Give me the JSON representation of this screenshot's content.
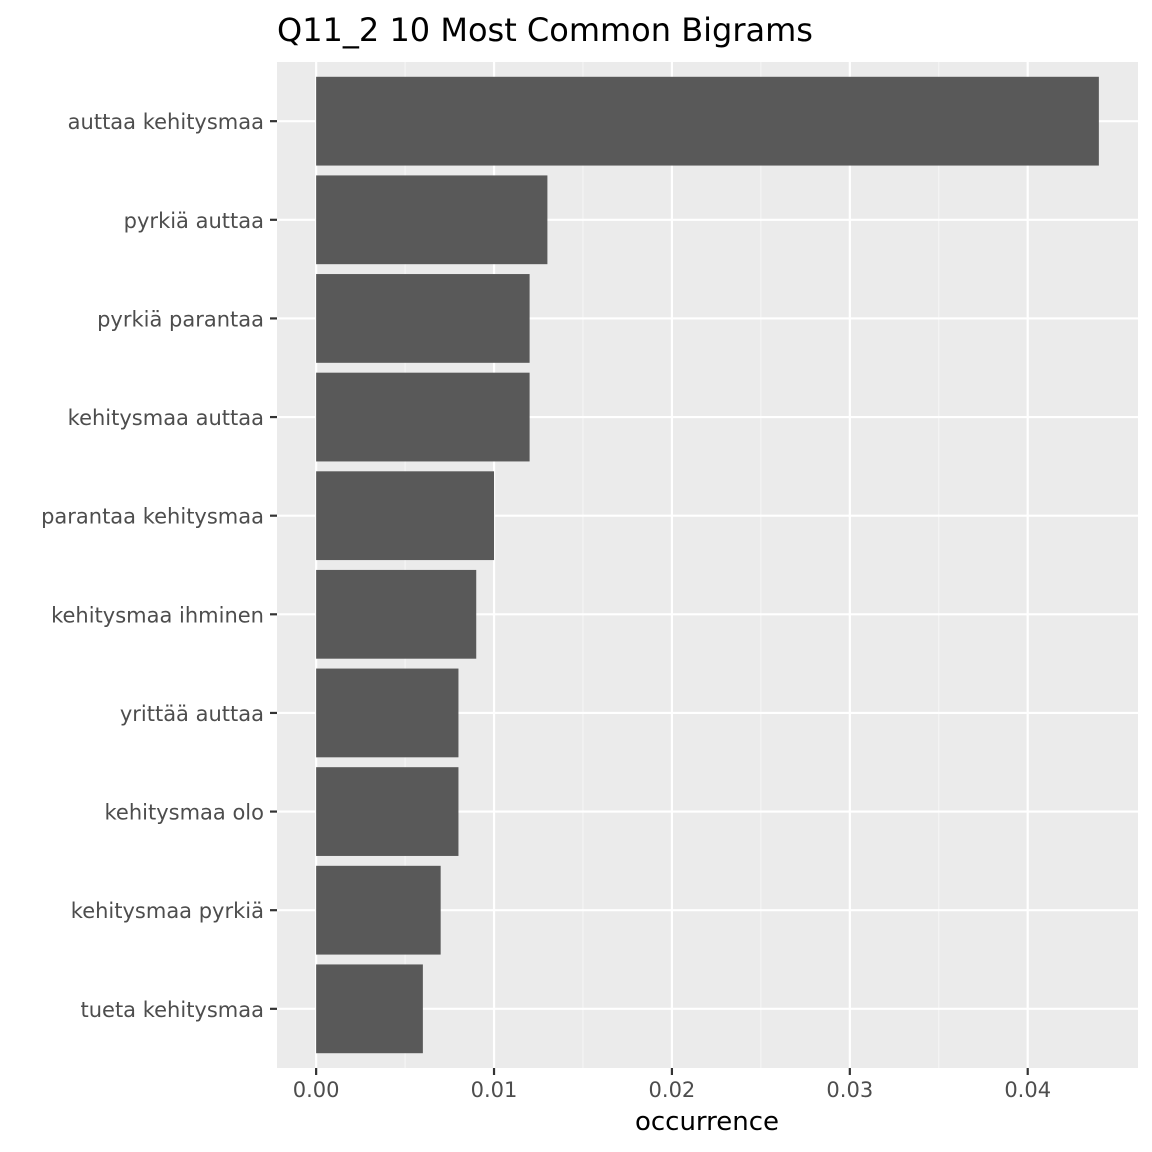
{
  "chart_data": {
    "type": "bar",
    "orientation": "horizontal",
    "title": "Q11_2 10 Most Common Bigrams",
    "xlabel": "occurrence",
    "ylabel": "",
    "categories": [
      "auttaa kehitysmaa",
      "pyrkiä auttaa",
      "pyrkiä parantaa",
      "kehitysmaa auttaa",
      "parantaa kehitysmaa",
      "kehitysmaa ihminen",
      "yrittää auttaa",
      "kehitysmaa olo",
      "kehitysmaa pyrkiä",
      "tueta kehitysmaa"
    ],
    "values": [
      0.044,
      0.013,
      0.012,
      0.012,
      0.01,
      0.009,
      0.008,
      0.008,
      0.007,
      0.006
    ],
    "xlim": [
      -0.0022,
      0.0462
    ],
    "x_ticks": [
      0.0,
      0.01,
      0.02,
      0.03,
      0.04
    ],
    "x_tick_labels": [
      "0.00",
      "0.01",
      "0.02",
      "0.03",
      "0.04"
    ],
    "grid": true,
    "legend": "none",
    "colors": {
      "bar": "#595959",
      "panel": "#ebebeb",
      "grid_major": "#ffffff",
      "grid_minor": "#f5f5f5",
      "tick_text": "#4d4d4d",
      "tick_mark": "#333333"
    }
  }
}
